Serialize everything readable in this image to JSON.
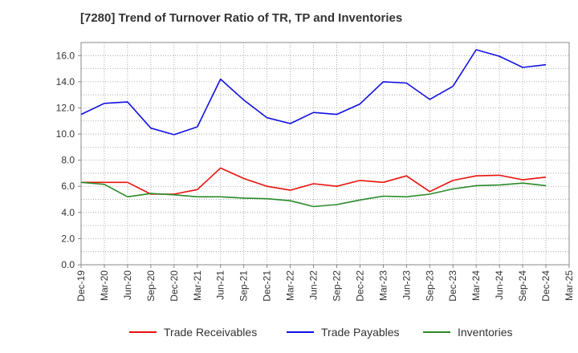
{
  "chart_data": {
    "type": "line",
    "title": "[7280]  Trend of Turnover Ratio of TR, TP and Inventories",
    "xlabel": "",
    "ylabel": "",
    "x": [
      "Dec-19",
      "Mar-20",
      "Jun-20",
      "Sep-20",
      "Dec-20",
      "Mar-21",
      "Jun-21",
      "Sep-21",
      "Dec-21",
      "Mar-22",
      "Jun-22",
      "Sep-22",
      "Dec-22",
      "Mar-23",
      "Jun-23",
      "Sep-23",
      "Dec-23",
      "Mar-24",
      "Jun-24",
      "Sep-24",
      "Dec-24",
      "Mar-25"
    ],
    "ylim": [
      0,
      17
    ],
    "yticks": [
      "0.0",
      "2.0",
      "4.0",
      "6.0",
      "8.0",
      "10.0",
      "12.0",
      "14.0",
      "16.0"
    ],
    "grid": true,
    "legend_position": "bottom",
    "series": [
      {
        "name": "Trade Receivables",
        "color": "#e8120c",
        "values": [
          6.3,
          6.3,
          6.3,
          5.4,
          5.4,
          5.75,
          7.4,
          6.6,
          6.0,
          5.7,
          6.2,
          6.0,
          6.45,
          6.3,
          6.8,
          5.6,
          6.45,
          6.8,
          6.85,
          6.5,
          6.7,
          null
        ]
      },
      {
        "name": "Trade Payables",
        "color": "#1010e0",
        "values": [
          11.5,
          12.35,
          12.45,
          10.45,
          9.95,
          10.55,
          14.2,
          12.6,
          11.25,
          10.8,
          11.65,
          11.5,
          12.3,
          14.0,
          13.9,
          12.65,
          13.65,
          16.45,
          15.95,
          15.1,
          15.3,
          null
        ]
      },
      {
        "name": "Inventories",
        "color": "#2a8a2a",
        "values": [
          6.3,
          6.15,
          5.2,
          5.45,
          5.35,
          5.2,
          5.2,
          5.1,
          5.05,
          4.9,
          4.45,
          4.6,
          4.95,
          5.25,
          5.2,
          5.4,
          5.8,
          6.05,
          6.1,
          6.25,
          6.05,
          null
        ]
      }
    ]
  }
}
